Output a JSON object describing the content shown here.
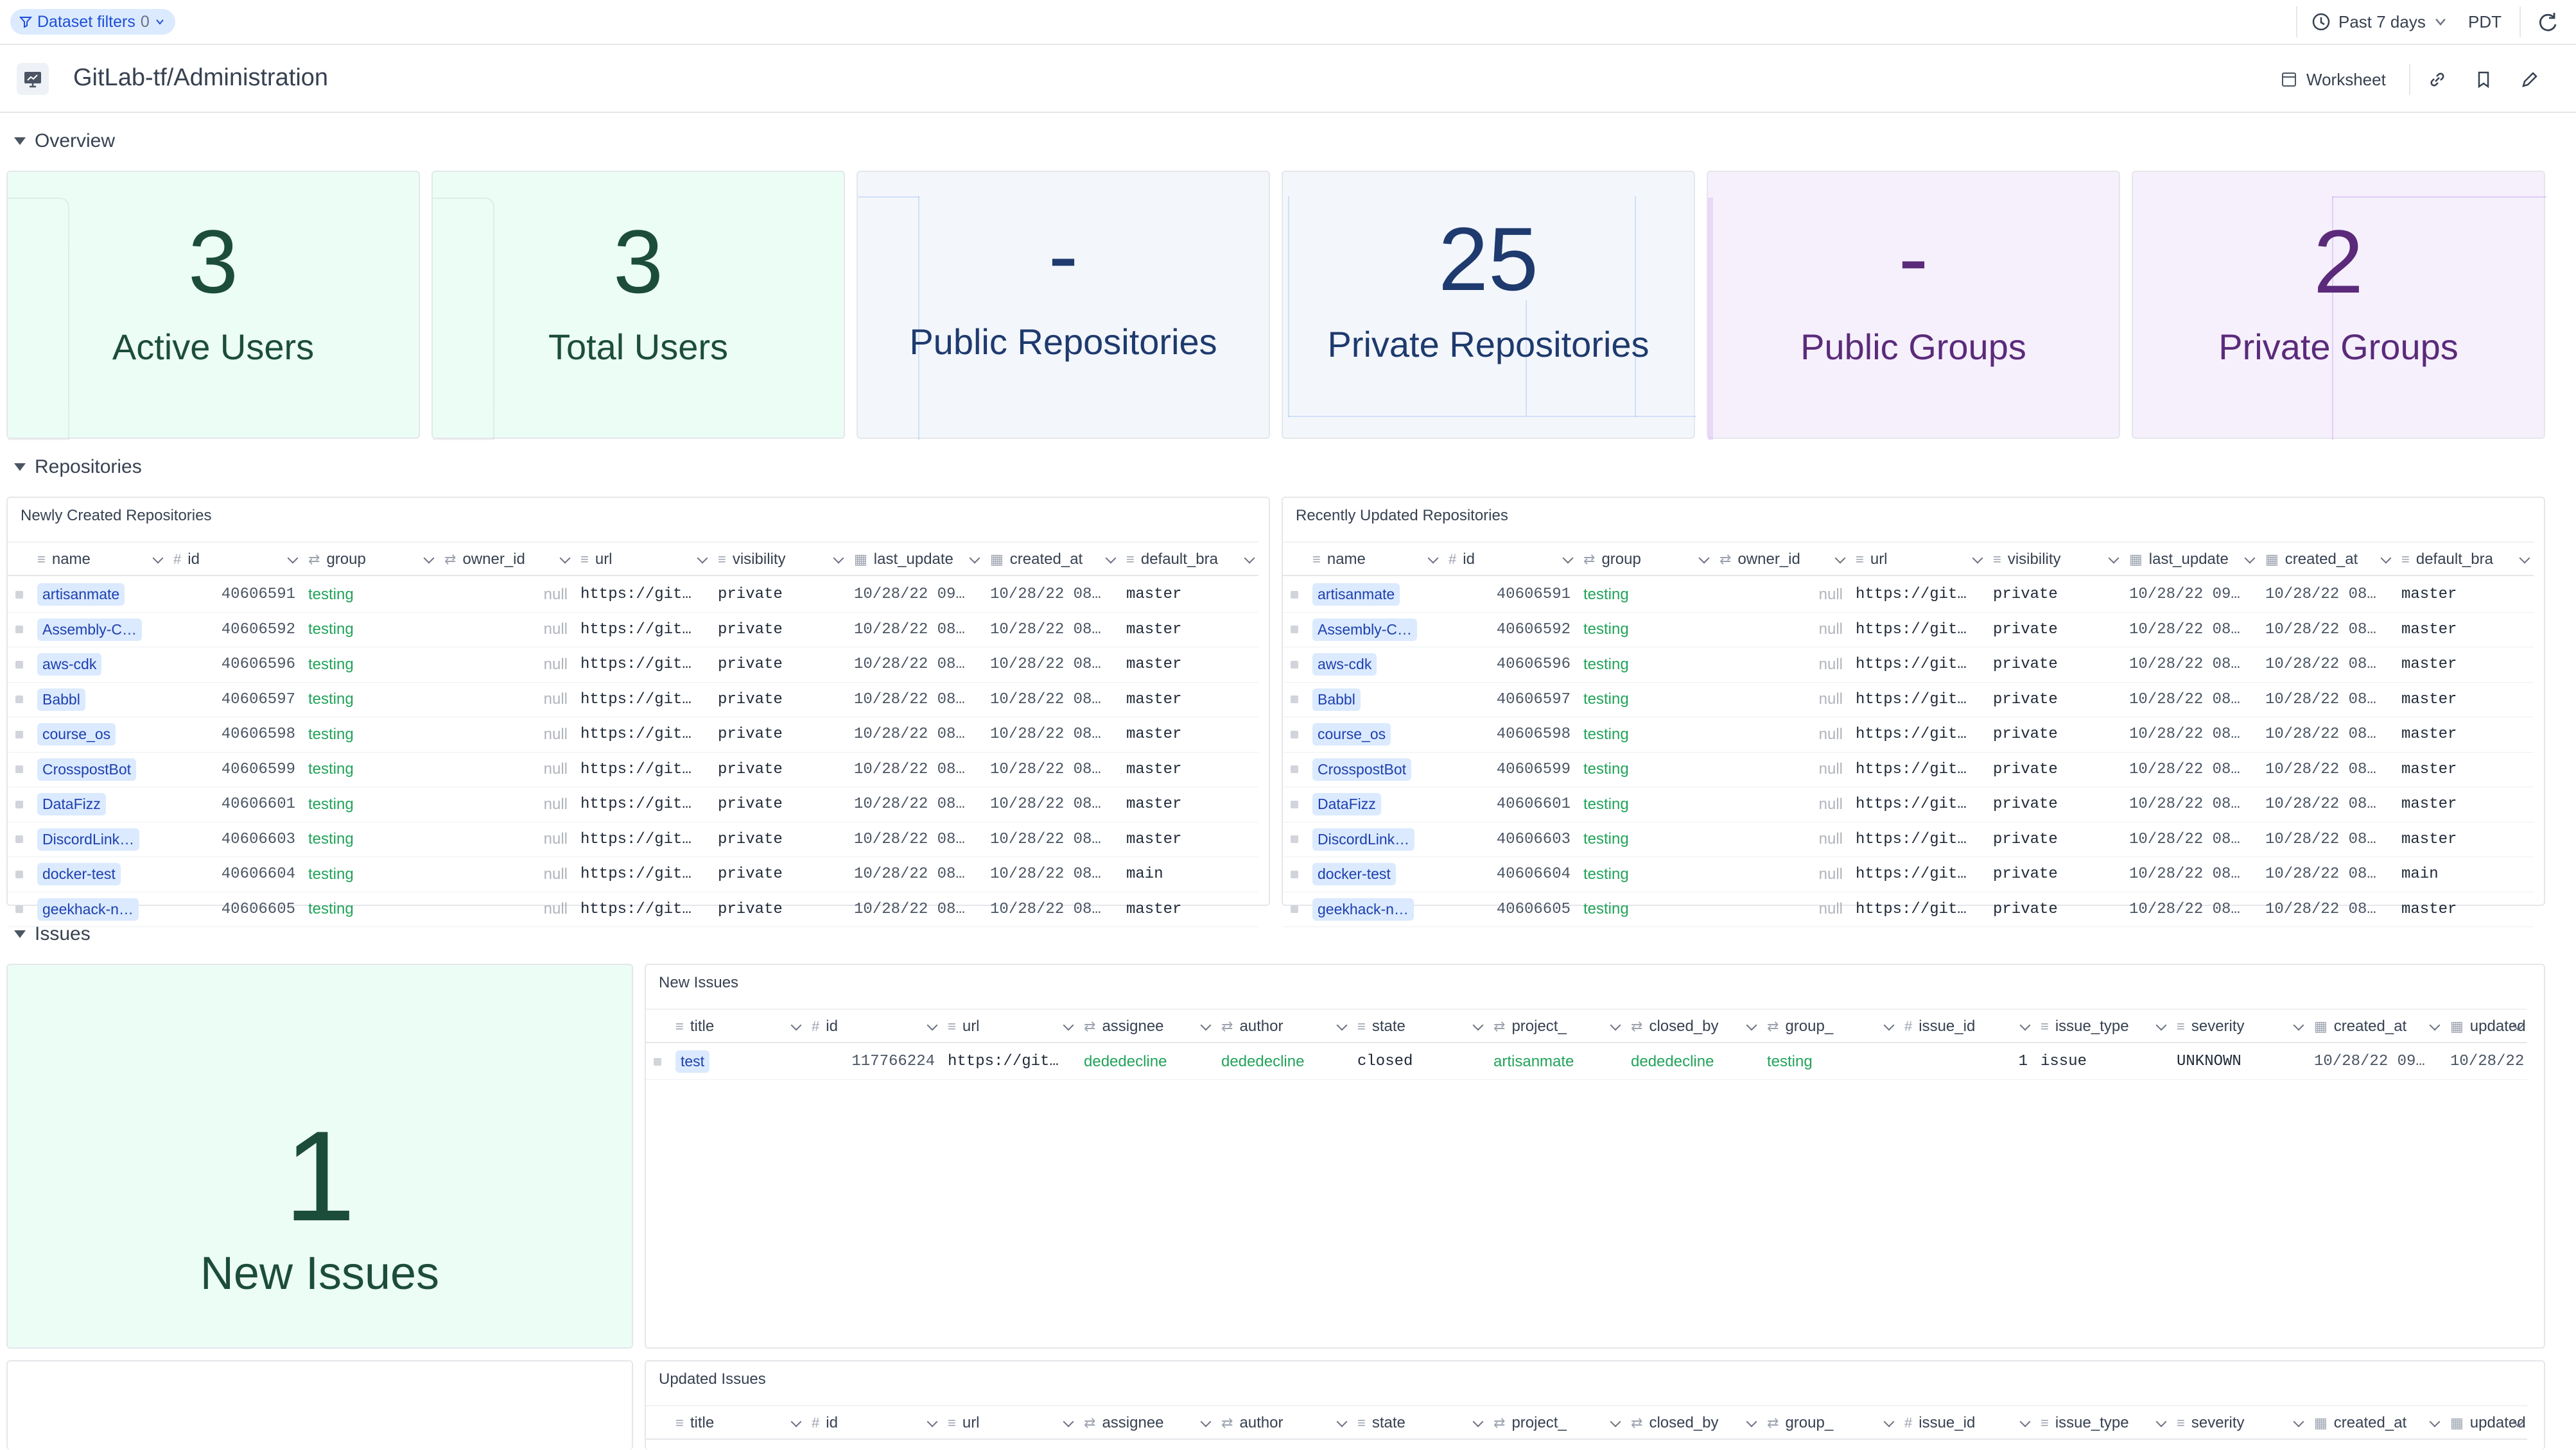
{
  "topbar": {
    "filter_label": "Dataset filters",
    "filter_count": "0",
    "time_range": "Past 7 days",
    "timezone": "PDT"
  },
  "header": {
    "title": "GitLab-tf/Administration",
    "worksheet_label": "Worksheet"
  },
  "sections": {
    "overview": "Overview",
    "repositories": "Repositories",
    "issues": "Issues"
  },
  "kpis": [
    {
      "value": "3",
      "label": "Active Users"
    },
    {
      "value": "3",
      "label": "Total Users"
    },
    {
      "value": "-",
      "label": "Public Repositories"
    },
    {
      "value": "25",
      "label": "Private Repositories"
    },
    {
      "value": "-",
      "label": "Public Groups"
    },
    {
      "value": "2",
      "label": "Private Groups"
    }
  ],
  "repo_columns": [
    "name",
    "id",
    "group",
    "owner_id",
    "url",
    "visibility",
    "last_update",
    "created_at",
    "default_bra"
  ],
  "repo_rows": [
    {
      "name": "artisanmate",
      "id": "40606591",
      "group": "testing",
      "owner_id": "null",
      "url": "https://git…",
      "visibility": "private",
      "last_update": "10/28/22 09…",
      "created_at": "10/28/22 08…",
      "default_branch": "master"
    },
    {
      "name": "Assembly-C…",
      "id": "40606592",
      "group": "testing",
      "owner_id": "null",
      "url": "https://git…",
      "visibility": "private",
      "last_update": "10/28/22 08…",
      "created_at": "10/28/22 08…",
      "default_branch": "master"
    },
    {
      "name": "aws-cdk",
      "id": "40606596",
      "group": "testing",
      "owner_id": "null",
      "url": "https://git…",
      "visibility": "private",
      "last_update": "10/28/22 08…",
      "created_at": "10/28/22 08…",
      "default_branch": "master"
    },
    {
      "name": "Babbl",
      "id": "40606597",
      "group": "testing",
      "owner_id": "null",
      "url": "https://git…",
      "visibility": "private",
      "last_update": "10/28/22 08…",
      "created_at": "10/28/22 08…",
      "default_branch": "master"
    },
    {
      "name": "course_os",
      "id": "40606598",
      "group": "testing",
      "owner_id": "null",
      "url": "https://git…",
      "visibility": "private",
      "last_update": "10/28/22 08…",
      "created_at": "10/28/22 08…",
      "default_branch": "master"
    },
    {
      "name": "CrosspostBot",
      "id": "40606599",
      "group": "testing",
      "owner_id": "null",
      "url": "https://git…",
      "visibility": "private",
      "last_update": "10/28/22 08…",
      "created_at": "10/28/22 08…",
      "default_branch": "master"
    },
    {
      "name": "DataFizz",
      "id": "40606601",
      "group": "testing",
      "owner_id": "null",
      "url": "https://git…",
      "visibility": "private",
      "last_update": "10/28/22 08…",
      "created_at": "10/28/22 08…",
      "default_branch": "master"
    },
    {
      "name": "DiscordLink…",
      "id": "40606603",
      "group": "testing",
      "owner_id": "null",
      "url": "https://git…",
      "visibility": "private",
      "last_update": "10/28/22 08…",
      "created_at": "10/28/22 08…",
      "default_branch": "master"
    },
    {
      "name": "docker-test",
      "id": "40606604",
      "group": "testing",
      "owner_id": "null",
      "url": "https://git…",
      "visibility": "private",
      "last_update": "10/28/22 08…",
      "created_at": "10/28/22 08…",
      "default_branch": "main"
    },
    {
      "name": "geekhack-n…",
      "id": "40606605",
      "group": "testing",
      "owner_id": "null",
      "url": "https://git…",
      "visibility": "private",
      "last_update": "10/28/22 08…",
      "created_at": "10/28/22 08…",
      "default_branch": "master"
    }
  ],
  "newly_created": {
    "title": "Newly Created Repositories"
  },
  "recently_updated": {
    "title": "Recently Updated Repositories"
  },
  "new_issues_kpi": {
    "value": "1",
    "label": "New Issues"
  },
  "issue_columns": [
    "title",
    "id",
    "url",
    "assignee",
    "author",
    "state",
    "project_",
    "closed_by",
    "group_",
    "issue_id",
    "issue_type",
    "severity",
    "created_at",
    "updated"
  ],
  "new_issues": {
    "title": "New Issues",
    "rows": [
      {
        "title": "test",
        "id": "117766224",
        "url": "https://git…",
        "assignee": "dededecline",
        "author": "dededecline",
        "state": "closed",
        "project": "artisanmate",
        "closed_by": "dededecline",
        "group": "testing",
        "issue_id": "1",
        "issue_type": "issue",
        "severity": "UNKNOWN",
        "created_at": "10/28/22 09…",
        "updated": "10/28/22"
      }
    ]
  },
  "updated_issues": {
    "title": "Updated Issues"
  },
  "colors": {
    "accent": "#1d4ed8",
    "green_text": "#22a35a",
    "kpi_green": "#ecfdf5",
    "kpi_blue": "#f3f6fb",
    "kpi_purple": "#f5f0fb"
  }
}
